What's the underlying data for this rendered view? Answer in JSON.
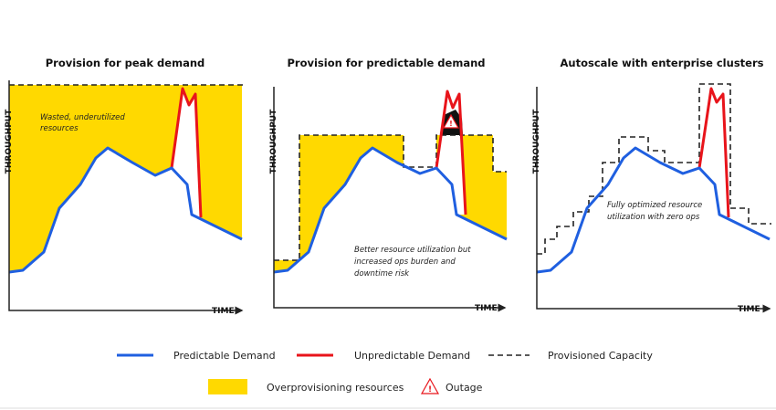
{
  "panels": [
    {
      "title": "Provision for peak demand",
      "y_label": "THROUGHPUT",
      "x_label": "TIME",
      "note": [
        "Wasted, underutilized",
        "resources"
      ]
    },
    {
      "title": "Provision for predictable demand",
      "y_label": "THROUGHPUT",
      "x_label": "TIME",
      "note": [
        "Better resource utilization but",
        "increased ops burden and",
        "downtime risk"
      ]
    },
    {
      "title": "Autoscale with enterprise clusters",
      "y_label": "THROUGHPUT",
      "x_label": "TIME",
      "note": [
        "Fully optimized resource",
        "utilization with zero ops"
      ]
    }
  ],
  "legend": [
    "Predictable Demand",
    "Unpredictable Demand",
    "Provisioned Capacity",
    "Overprovisioning resources",
    "Outage"
  ]
}
